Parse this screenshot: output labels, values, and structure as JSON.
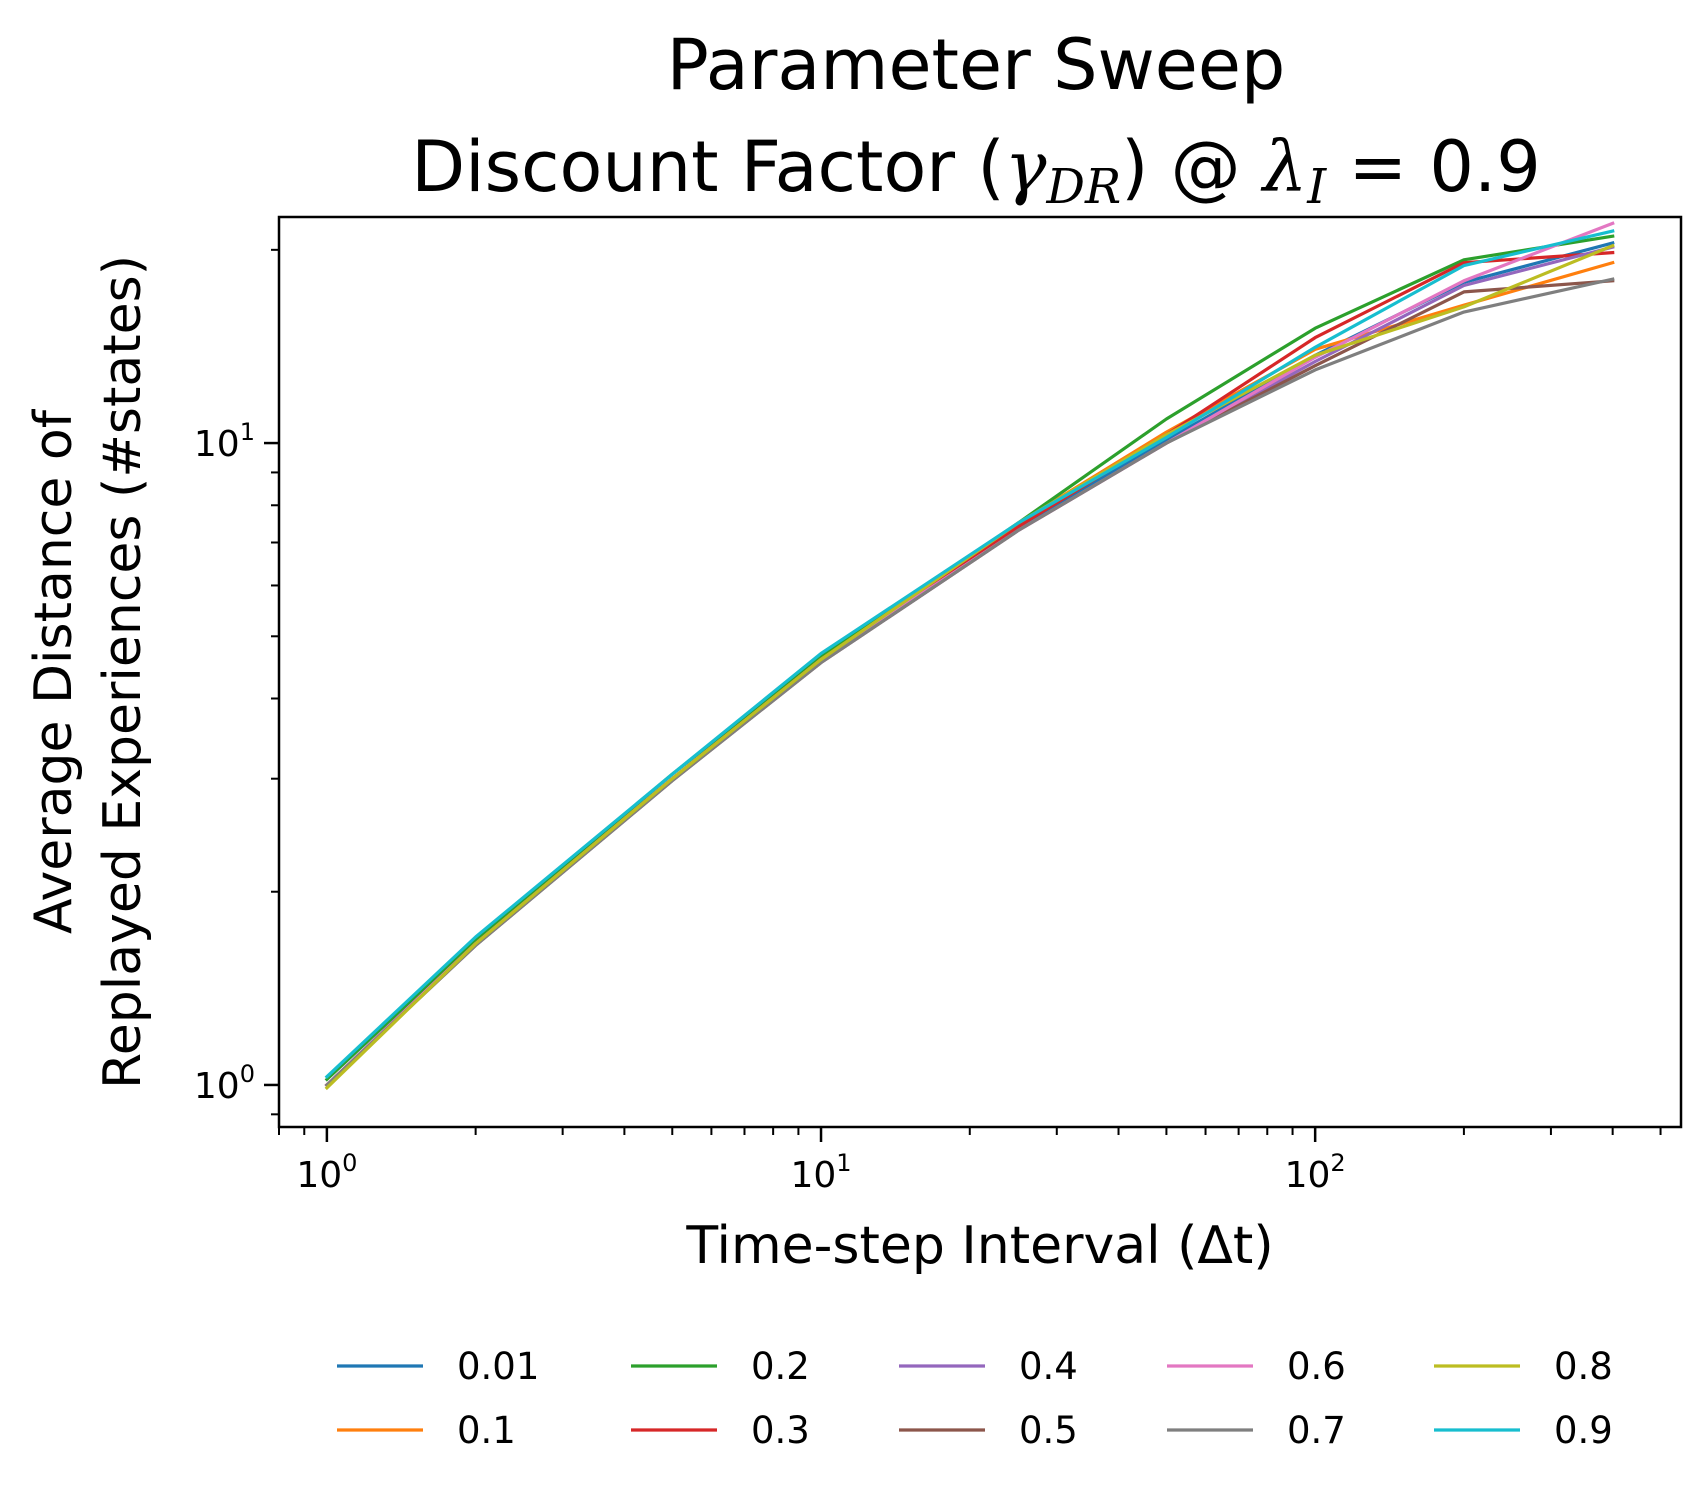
{
  "chart_data": {
    "type": "line",
    "title_line1": "Parameter Sweep",
    "title_line2_prefix": "Discount Factor (",
    "title_gamma": "γ",
    "title_gamma_sub": "DR",
    "title_mid": ") @ ",
    "title_lambda": "λ",
    "title_lambda_sub": "I",
    "title_suffix": " = 0.9",
    "xlabel": "Time-step Interval (Δt)",
    "ylabel_line1": "Average Distance of",
    "ylabel_line2": "Replayed Experiences (#states)",
    "xscale": "log",
    "yscale": "log",
    "xlim": [
      0.8,
      550
    ],
    "ylim": [
      0.86,
      22.5
    ],
    "x_ticks": [
      {
        "value": 1,
        "base": "10",
        "exp": "0"
      },
      {
        "value": 10,
        "base": "10",
        "exp": "1"
      },
      {
        "value": 100,
        "base": "10",
        "exp": "2"
      }
    ],
    "y_ticks": [
      {
        "value": 1,
        "base": "10",
        "exp": "0"
      },
      {
        "value": 10,
        "base": "10",
        "exp": "1"
      }
    ],
    "grid": false,
    "legend_placement": "bottom-center",
    "x": [
      1,
      2,
      5,
      10,
      25,
      50,
      100,
      200,
      400
    ],
    "series": [
      {
        "name": "0.01",
        "color": "#1f77b4",
        "values": [
          1.0,
          1.66,
          3.0,
          4.6,
          7.4,
          10.1,
          13.7,
          17.8,
          20.5
        ]
      },
      {
        "name": "0.1",
        "color": "#ff7f0e",
        "values": [
          1.0,
          1.66,
          3.0,
          4.6,
          7.5,
          10.4,
          14.0,
          16.4,
          19.1
        ]
      },
      {
        "name": "0.2",
        "color": "#2ca02c",
        "values": [
          1.02,
          1.68,
          3.05,
          4.65,
          7.5,
          10.9,
          15.1,
          19.3,
          21.0
        ]
      },
      {
        "name": "0.3",
        "color": "#d62728",
        "values": [
          1.0,
          1.66,
          3.0,
          4.6,
          7.4,
          10.3,
          14.6,
          19.1,
          19.8
        ]
      },
      {
        "name": "0.4",
        "color": "#9467bd",
        "values": [
          1.0,
          1.66,
          3.0,
          4.55,
          7.3,
          10.0,
          13.4,
          17.6,
          20.2
        ]
      },
      {
        "name": "0.5",
        "color": "#8c564b",
        "values": [
          1.0,
          1.65,
          2.98,
          4.55,
          7.3,
          10.0,
          13.2,
          17.2,
          17.9
        ]
      },
      {
        "name": "0.6",
        "color": "#e377c2",
        "values": [
          1.0,
          1.66,
          3.0,
          4.6,
          7.3,
          10.0,
          13.6,
          17.9,
          22.0
        ]
      },
      {
        "name": "0.7",
        "color": "#7f7f7f",
        "values": [
          1.0,
          1.65,
          2.98,
          4.55,
          7.3,
          10.0,
          13.0,
          16.0,
          18.0
        ]
      },
      {
        "name": "0.8",
        "color": "#bcbd22",
        "values": [
          0.99,
          1.66,
          3.0,
          4.6,
          7.5,
          10.3,
          13.7,
          16.3,
          20.3
        ]
      },
      {
        "name": "0.9",
        "color": "#17becf",
        "values": [
          1.03,
          1.7,
          3.05,
          4.7,
          7.5,
          10.2,
          14.1,
          18.9,
          21.4
        ]
      }
    ]
  }
}
